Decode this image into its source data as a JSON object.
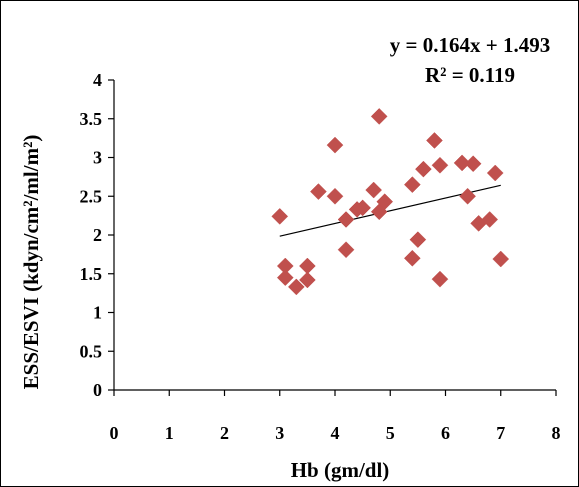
{
  "chart_data": {
    "type": "scatter",
    "xlabel": "Hb (gm/dl)",
    "ylabel": "ESS/ESVI (kdyn/cm²/ml/m²)",
    "xlim": [
      0,
      8
    ],
    "ylim": [
      0,
      4
    ],
    "x_ticks": [
      "0",
      "1",
      "2",
      "3",
      "4",
      "5",
      "6",
      "7",
      "8"
    ],
    "y_ticks": [
      "0",
      "0.5",
      "1",
      "1.5",
      "2",
      "2.5",
      "3",
      "3.5",
      "4"
    ],
    "marker_color": "#c0504d",
    "line_color": "#000000",
    "grid": false,
    "legend": "none",
    "annotations": {
      "equation": "y = 0.164x + 1.493",
      "r_squared": "R² = 0.119"
    },
    "trendline": {
      "slope": 0.164,
      "intercept": 1.493,
      "x_range": [
        3,
        7
      ]
    },
    "points": [
      {
        "x": 3.0,
        "y": 2.24
      },
      {
        "x": 3.1,
        "y": 1.6
      },
      {
        "x": 3.1,
        "y": 1.45
      },
      {
        "x": 3.3,
        "y": 1.33
      },
      {
        "x": 3.5,
        "y": 1.6
      },
      {
        "x": 3.5,
        "y": 1.42
      },
      {
        "x": 3.7,
        "y": 2.56
      },
      {
        "x": 4.0,
        "y": 3.16
      },
      {
        "x": 4.0,
        "y": 2.5
      },
      {
        "x": 4.2,
        "y": 2.2
      },
      {
        "x": 4.2,
        "y": 1.81
      },
      {
        "x": 4.4,
        "y": 2.33
      },
      {
        "x": 4.5,
        "y": 2.35
      },
      {
        "x": 4.7,
        "y": 2.58
      },
      {
        "x": 4.8,
        "y": 3.53
      },
      {
        "x": 4.8,
        "y": 2.3
      },
      {
        "x": 4.9,
        "y": 2.43
      },
      {
        "x": 5.4,
        "y": 2.65
      },
      {
        "x": 5.4,
        "y": 1.7
      },
      {
        "x": 5.5,
        "y": 1.94
      },
      {
        "x": 5.6,
        "y": 2.85
      },
      {
        "x": 5.8,
        "y": 3.22
      },
      {
        "x": 5.9,
        "y": 2.9
      },
      {
        "x": 5.9,
        "y": 1.43
      },
      {
        "x": 6.3,
        "y": 2.93
      },
      {
        "x": 6.4,
        "y": 2.5
      },
      {
        "x": 6.5,
        "y": 2.92
      },
      {
        "x": 6.6,
        "y": 2.15
      },
      {
        "x": 6.8,
        "y": 2.2
      },
      {
        "x": 6.9,
        "y": 2.8
      },
      {
        "x": 7.0,
        "y": 1.69
      }
    ]
  }
}
